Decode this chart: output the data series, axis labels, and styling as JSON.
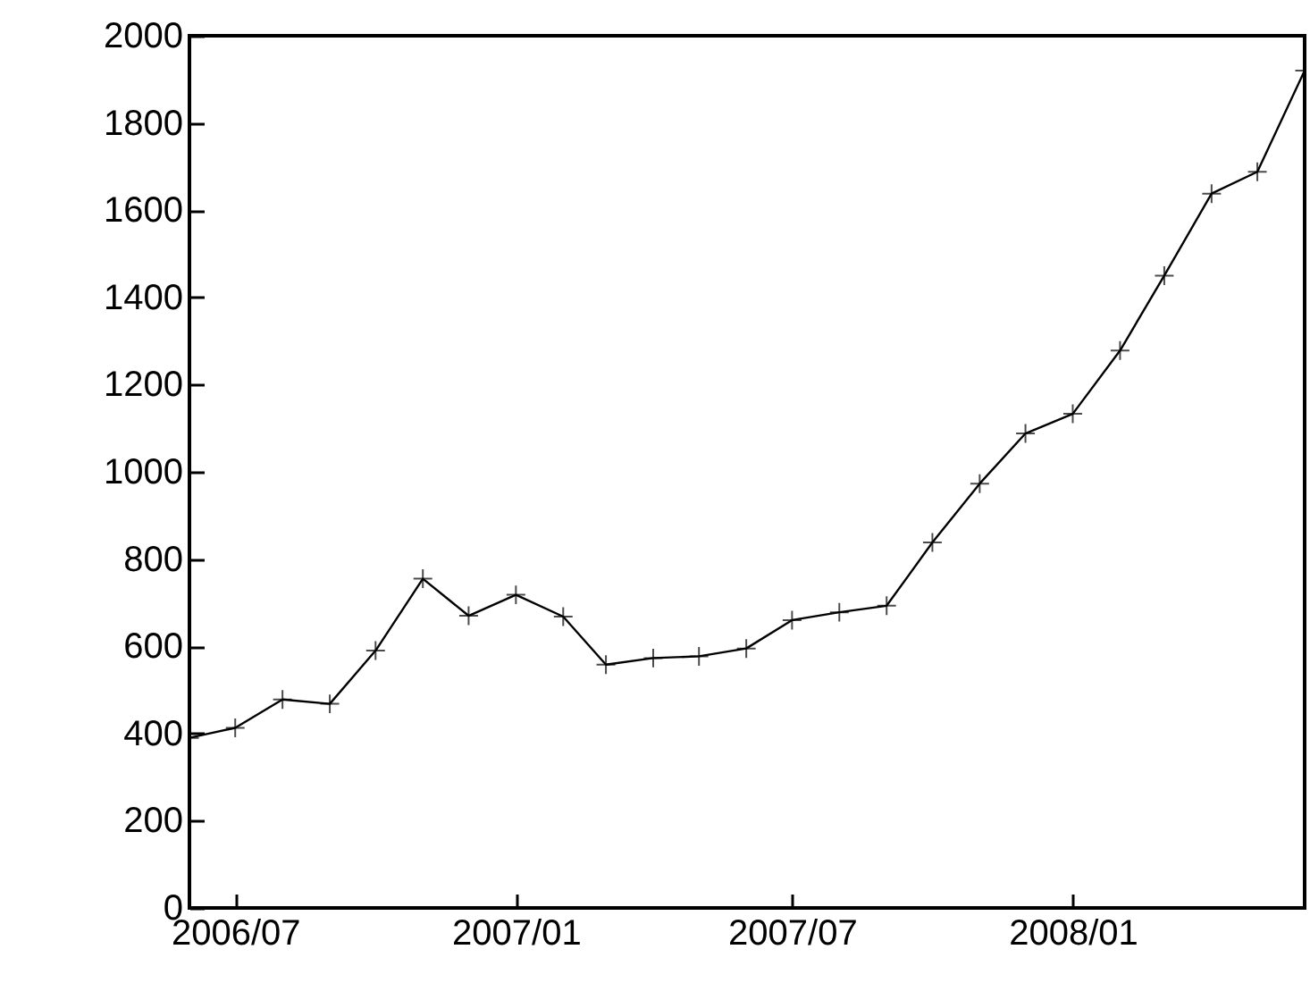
{
  "chart_data": {
    "type": "line",
    "x": [
      "2006-06",
      "2006-07",
      "2006-08",
      "2006-09",
      "2006-10",
      "2006-11",
      "2006-12",
      "2007-01",
      "2007-02",
      "2007-03",
      "2007-04",
      "2007-05",
      "2007-06",
      "2007-07",
      "2007-08",
      "2007-09",
      "2007-10",
      "2007-11",
      "2007-12",
      "2008-01",
      "2008-02",
      "2008-03",
      "2008-04",
      "2008-05",
      "2008-06"
    ],
    "series": [
      {
        "color": "#000000",
        "values": [
          390,
          413,
          478,
          468,
          590,
          755,
          670,
          718,
          668,
          558,
          573,
          577,
          595,
          660,
          678,
          693,
          838,
          973,
          1088,
          1133,
          1278,
          1450,
          1638,
          1688,
          1920
        ]
      }
    ],
    "xlim": [
      "2006-06",
      "2008-06"
    ],
    "xticks": [
      {
        "value": "2006-07",
        "label": "2006/07"
      },
      {
        "value": "2007-01",
        "label": "2007/01"
      },
      {
        "value": "2007-07",
        "label": "2007/07"
      },
      {
        "value": "2008-01",
        "label": "2008/01"
      }
    ],
    "ylim": [
      0,
      2000
    ],
    "yticks": [
      0,
      200,
      400,
      600,
      800,
      1000,
      1200,
      1400,
      1600,
      1800,
      2000
    ],
    "marker": "cross",
    "grid": false,
    "legend": false
  }
}
